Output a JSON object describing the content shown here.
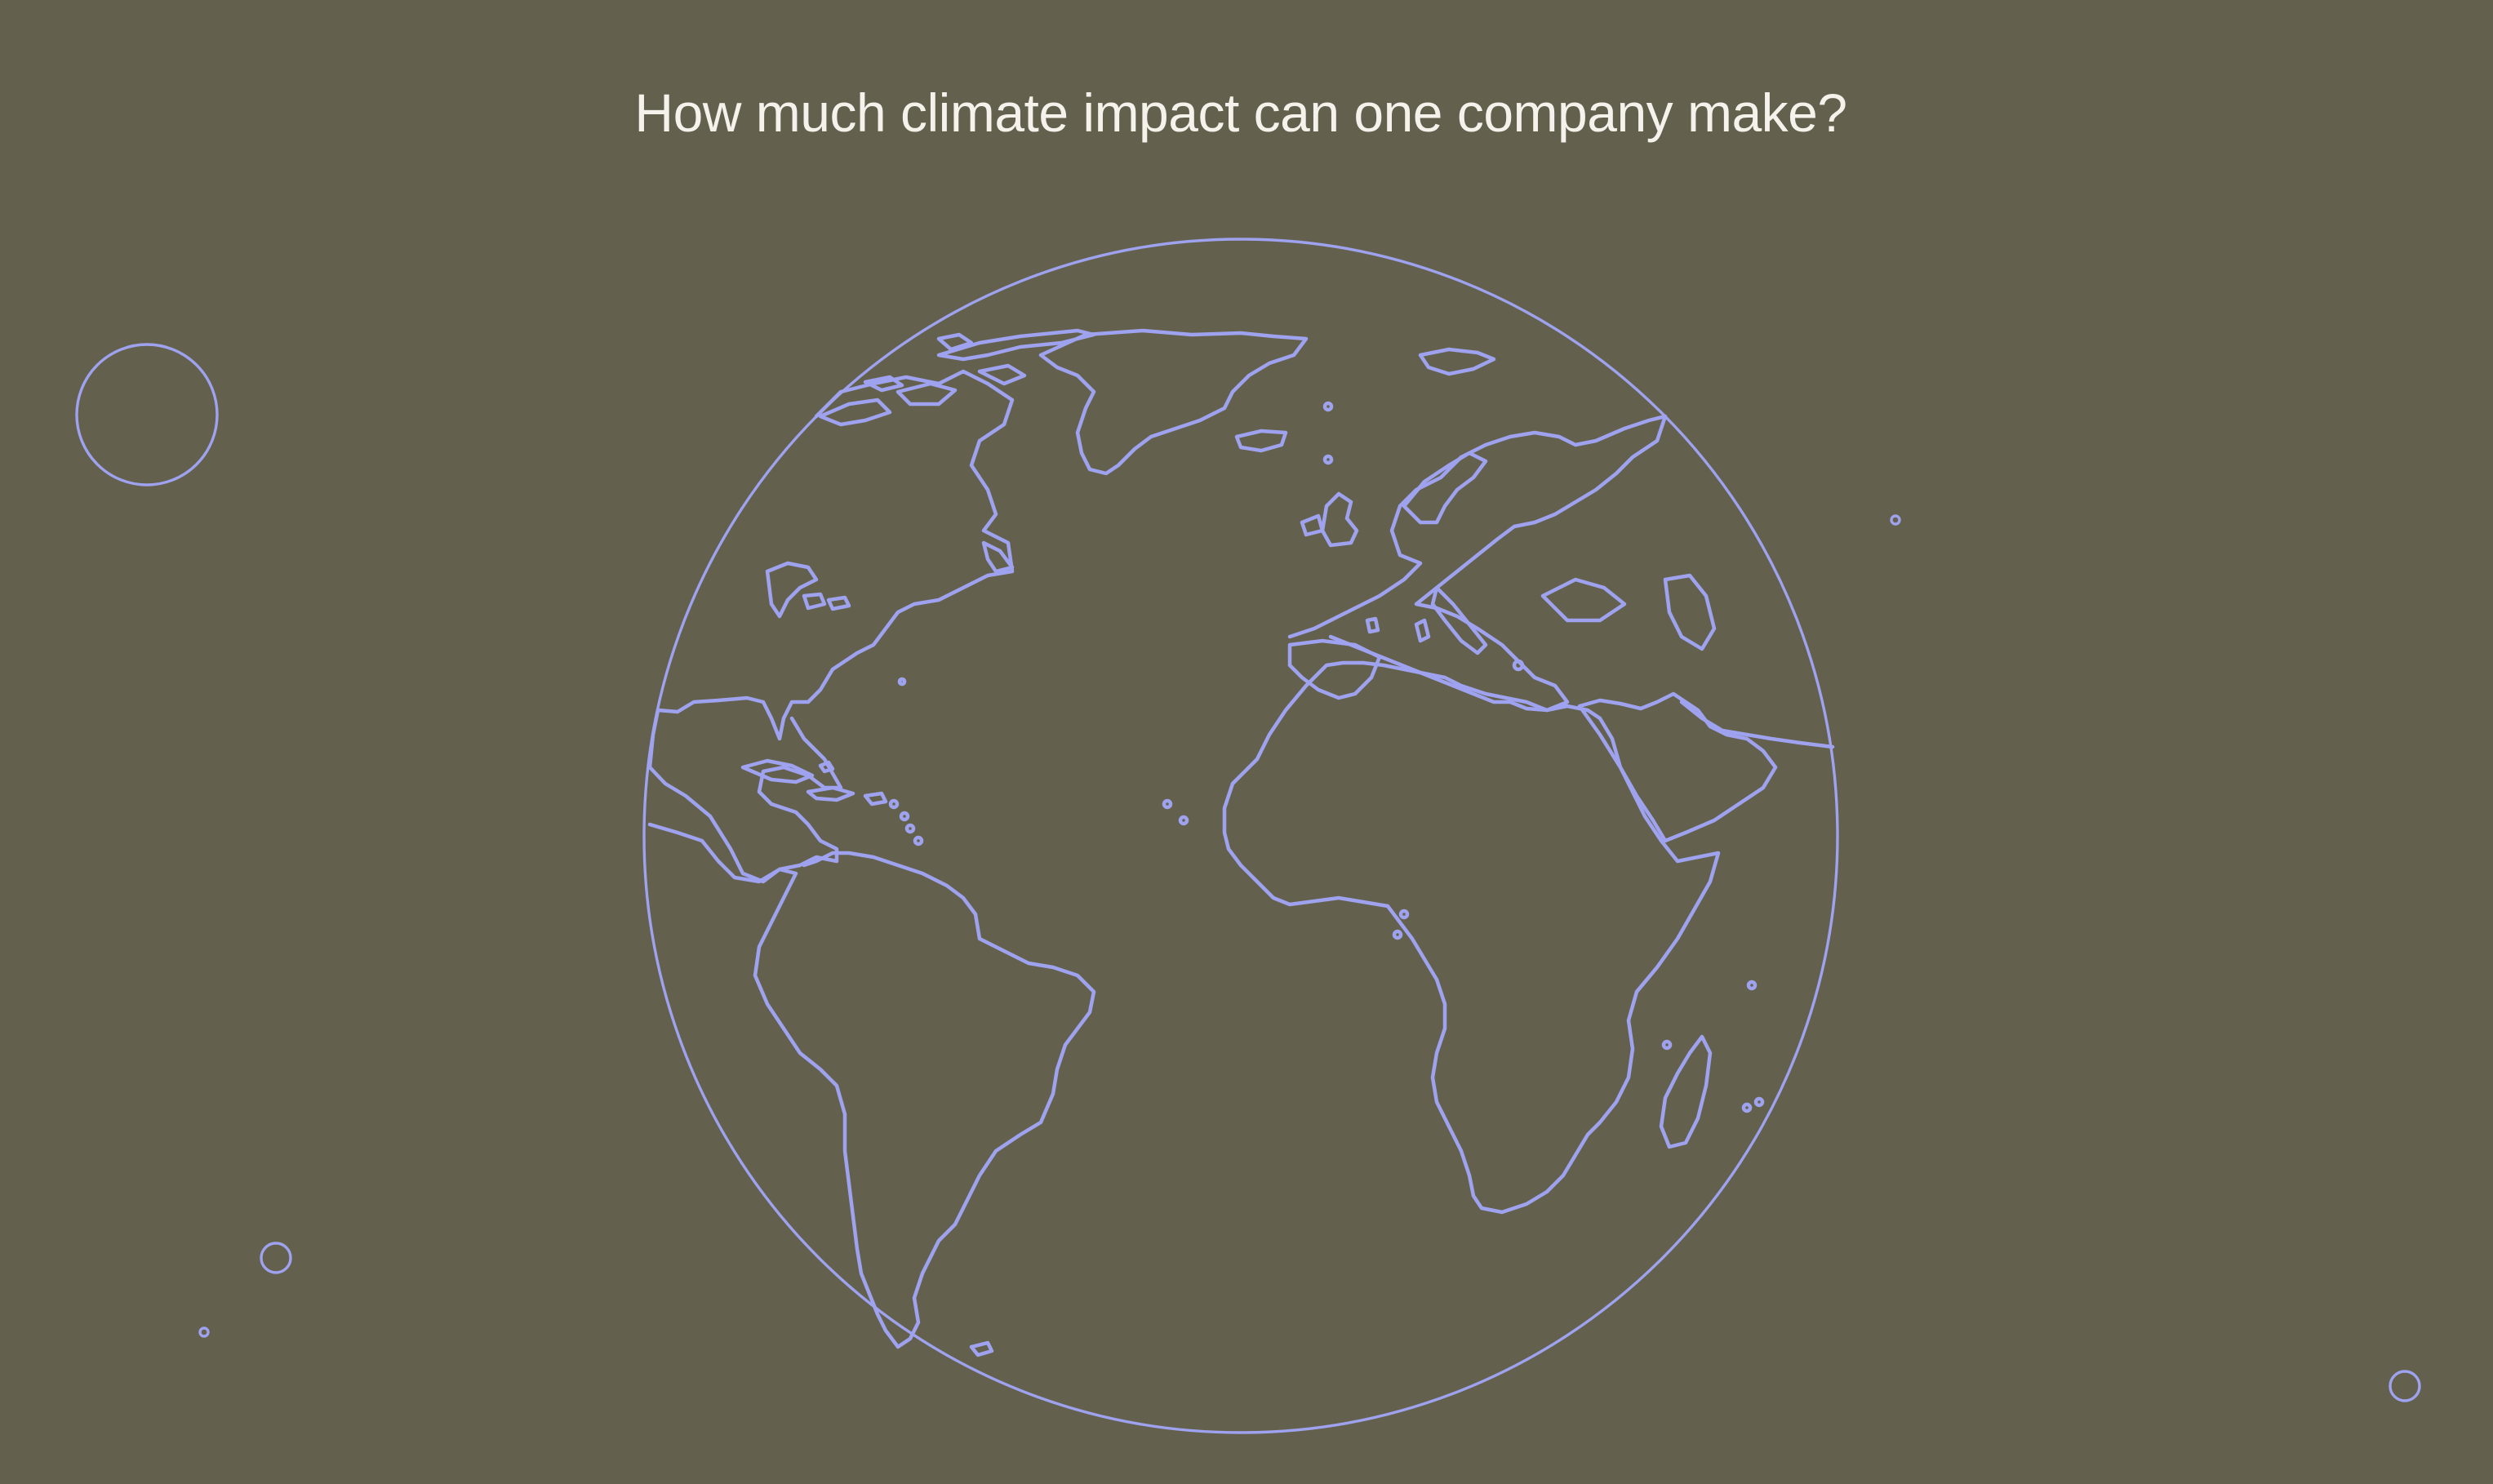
{
  "headline": "How much climate impact can one company make?",
  "colors": {
    "background": "#63614d",
    "text": "#f4f2ea",
    "outline": "#9fa2ee"
  },
  "icons": {
    "globe": "globe-outline-icon",
    "planet": "circle-outline-icon"
  }
}
